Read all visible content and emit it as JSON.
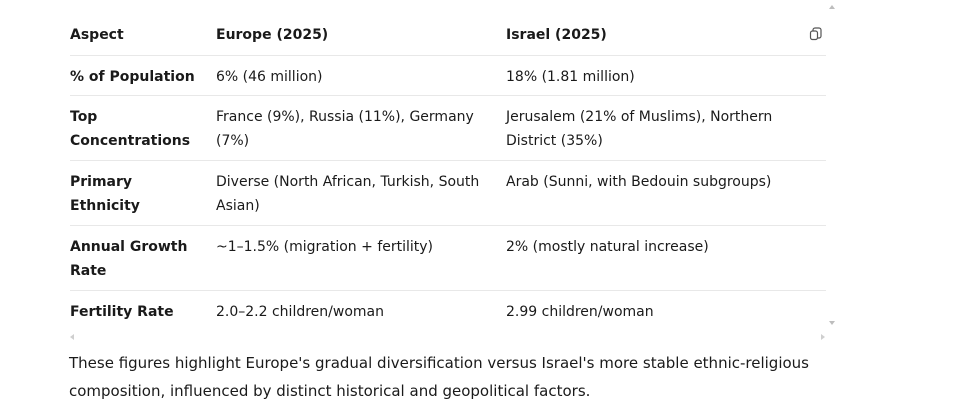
{
  "table": {
    "headers": [
      "Aspect",
      "Europe (2025)",
      "Israel (2025)"
    ],
    "rows": [
      [
        "% of Population",
        "6% (46 million)",
        "18% (1.81 million)"
      ],
      [
        "Top Concentrations",
        "France (9%), Russia (11%), Germany (7%)",
        "Jerusalem (21% of Muslims), Northern District (35%)"
      ],
      [
        "Primary Ethnicity",
        "Diverse (North African, Turkish, South Asian)",
        "Arab (Sunni, with Bedouin subgroups)"
      ],
      [
        "Annual Growth Rate",
        "~1–1.5% (migration + fertility)",
        "2% (mostly natural increase)"
      ],
      [
        "Fertility Rate",
        "2.0–2.2 children/woman",
        "2.99 children/woman"
      ]
    ]
  },
  "summary": "These figures highlight Europe's gradual diversification versus Israel's more stable ethnic-religious composition, influenced by distinct historical and geopolitical factors."
}
